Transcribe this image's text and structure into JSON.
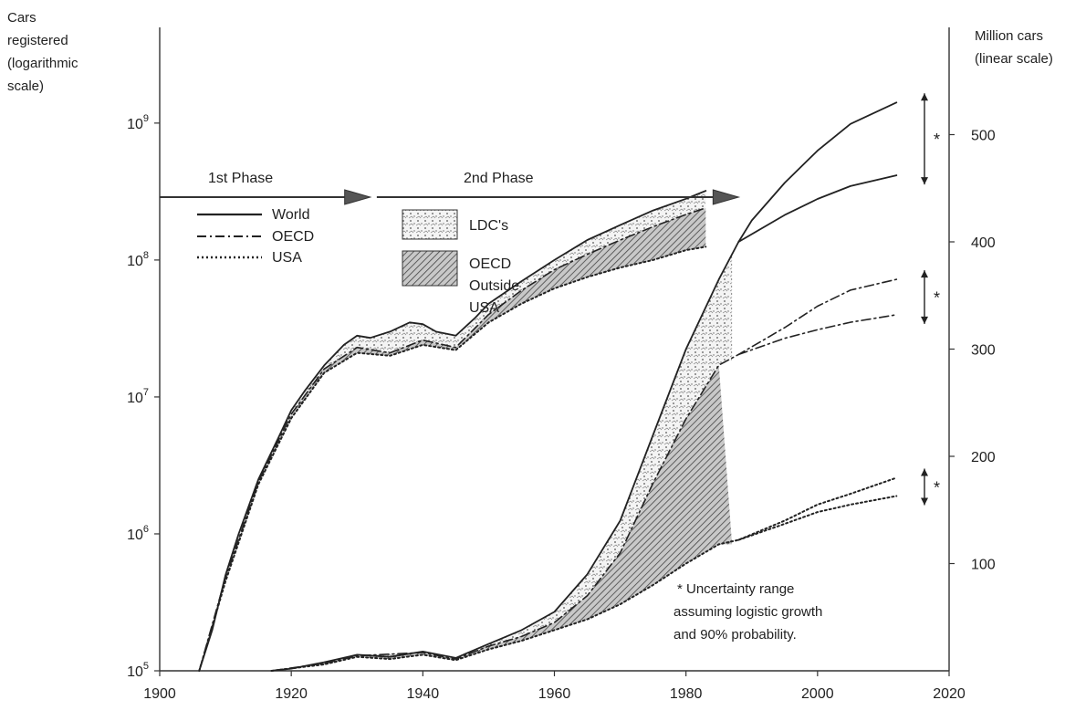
{
  "chart_data": {
    "type": "area",
    "left_axis_title": [
      "Cars",
      "registered",
      "(logarithmic",
      "scale)"
    ],
    "right_axis_title": [
      "Million cars",
      "(linear scale)"
    ],
    "x_ticks": [
      "1900",
      "1920",
      "1940",
      "1960",
      "1980",
      "2000",
      "2020"
    ],
    "x_range": [
      1900,
      2020
    ],
    "left_ticks": [
      {
        "base": "10",
        "exp": "5",
        "value": 100000
      },
      {
        "base": "10",
        "exp": "6",
        "value": 1000000
      },
      {
        "base": "10",
        "exp": "7",
        "value": 10000000
      },
      {
        "base": "10",
        "exp": "8",
        "value": 100000000
      },
      {
        "base": "10",
        "exp": "9",
        "value": 1000000000
      }
    ],
    "left_range": [
      100000,
      5000000000
    ],
    "log_scale_left": true,
    "right_ticks": [
      "100",
      "200",
      "300",
      "400",
      "500"
    ],
    "right_range": [
      0,
      600
    ],
    "phases": [
      {
        "label": "1st Phase",
        "from": 1900,
        "to": 1932
      },
      {
        "label": "2nd Phase",
        "from": 1933,
        "to": 1988
      }
    ],
    "legend_lines": [
      {
        "label": "World",
        "style": "solid"
      },
      {
        "label": "OECD",
        "style": "dashdot"
      },
      {
        "label": "USA",
        "style": "dotted"
      }
    ],
    "legend_fills": [
      {
        "label": "LDC's",
        "lines": [
          "LDC's"
        ]
      },
      {
        "label": "OECD Outside USA",
        "lines": [
          "OECD",
          "Outside",
          "USA"
        ]
      }
    ],
    "note": [
      "* Uncertainty range",
      "assuming logistic growth",
      "and 90% probability."
    ],
    "uncertainty_marker": "*",
    "series": [
      {
        "name": "World",
        "axis": "left-log",
        "points": [
          [
            1906,
            100000
          ],
          [
            1908,
            200000
          ],
          [
            1910,
            500000
          ],
          [
            1912,
            1000000
          ],
          [
            1915,
            2500000
          ],
          [
            1918,
            5000000
          ],
          [
            1920,
            8000000
          ],
          [
            1922,
            11000000
          ],
          [
            1925,
            17000000
          ],
          [
            1928,
            24000000
          ],
          [
            1930,
            28000000
          ],
          [
            1932,
            27000000
          ],
          [
            1935,
            30000000
          ],
          [
            1938,
            35000000
          ],
          [
            1940,
            34000000
          ],
          [
            1942,
            30000000
          ],
          [
            1945,
            28000000
          ],
          [
            1948,
            38000000
          ],
          [
            1950,
            48000000
          ],
          [
            1955,
            70000000
          ],
          [
            1960,
            100000000
          ],
          [
            1965,
            140000000
          ],
          [
            1970,
            180000000
          ],
          [
            1975,
            230000000
          ],
          [
            1980,
            280000000
          ],
          [
            1983,
            320000000
          ]
        ]
      },
      {
        "name": "OECD",
        "axis": "left-log",
        "points": [
          [
            1906,
            100000
          ],
          [
            1910,
            480000
          ],
          [
            1915,
            2400000
          ],
          [
            1920,
            7500000
          ],
          [
            1925,
            16000000
          ],
          [
            1930,
            23000000
          ],
          [
            1935,
            21000000
          ],
          [
            1940,
            26000000
          ],
          [
            1945,
            23000000
          ],
          [
            1950,
            40000000
          ],
          [
            1955,
            60000000
          ],
          [
            1960,
            85000000
          ],
          [
            1965,
            110000000
          ],
          [
            1970,
            140000000
          ],
          [
            1975,
            175000000
          ],
          [
            1980,
            215000000
          ],
          [
            1983,
            240000000
          ]
        ]
      },
      {
        "name": "USA",
        "axis": "left-log",
        "points": [
          [
            1906,
            100000
          ],
          [
            1910,
            450000
          ],
          [
            1915,
            2300000
          ],
          [
            1920,
            7000000
          ],
          [
            1925,
            15000000
          ],
          [
            1930,
            21000000
          ],
          [
            1935,
            20000000
          ],
          [
            1940,
            24000000
          ],
          [
            1945,
            22000000
          ],
          [
            1950,
            35000000
          ],
          [
            1955,
            48000000
          ],
          [
            1960,
            62000000
          ],
          [
            1965,
            75000000
          ],
          [
            1970,
            88000000
          ],
          [
            1975,
            100000000
          ],
          [
            1980,
            118000000
          ],
          [
            1983,
            125000000
          ]
        ]
      },
      {
        "name": "World",
        "axis": "right-linear",
        "points": [
          [
            1917,
            0
          ],
          [
            1920,
            2
          ],
          [
            1925,
            8
          ],
          [
            1930,
            15
          ],
          [
            1935,
            13
          ],
          [
            1940,
            18
          ],
          [
            1945,
            12
          ],
          [
            1950,
            25
          ],
          [
            1955,
            38
          ],
          [
            1960,
            55
          ],
          [
            1965,
            90
          ],
          [
            1970,
            140
          ],
          [
            1975,
            220
          ],
          [
            1980,
            300
          ],
          [
            1985,
            365
          ],
          [
            1988,
            400
          ],
          [
            1990,
            420
          ],
          [
            1995,
            455
          ],
          [
            2000,
            485
          ],
          [
            2005,
            510
          ],
          [
            2012,
            530
          ]
        ]
      },
      {
        "name": "World",
        "axis": "right-linear",
        "points": [
          [
            1988,
            400
          ],
          [
            1995,
            425
          ],
          [
            2000,
            440
          ],
          [
            2005,
            452
          ],
          [
            2012,
            462
          ]
        ]
      },
      {
        "name": "OECD",
        "axis": "right-linear",
        "points": [
          [
            1917,
            0
          ],
          [
            1925,
            7
          ],
          [
            1930,
            14
          ],
          [
            1940,
            17
          ],
          [
            1945,
            11
          ],
          [
            1950,
            23
          ],
          [
            1955,
            32
          ],
          [
            1960,
            45
          ],
          [
            1965,
            70
          ],
          [
            1970,
            110
          ],
          [
            1975,
            175
          ],
          [
            1980,
            235
          ],
          [
            1985,
            285
          ],
          [
            1988,
            295
          ],
          [
            1995,
            320
          ],
          [
            2000,
            340
          ],
          [
            2005,
            355
          ],
          [
            2012,
            365
          ]
        ]
      },
      {
        "name": "OECD",
        "axis": "right-linear",
        "points": [
          [
            1988,
            295
          ],
          [
            1995,
            310
          ],
          [
            2000,
            318
          ],
          [
            2005,
            325
          ],
          [
            2012,
            332
          ]
        ]
      },
      {
        "name": "USA",
        "axis": "right-linear",
        "points": [
          [
            1917,
            0
          ],
          [
            1925,
            6
          ],
          [
            1930,
            13
          ],
          [
            1935,
            11
          ],
          [
            1940,
            15
          ],
          [
            1945,
            10
          ],
          [
            1950,
            20
          ],
          [
            1955,
            28
          ],
          [
            1960,
            38
          ],
          [
            1965,
            48
          ],
          [
            1970,
            62
          ],
          [
            1975,
            80
          ],
          [
            1980,
            100
          ],
          [
            1985,
            118
          ],
          [
            1988,
            122
          ],
          [
            1995,
            140
          ],
          [
            2000,
            155
          ],
          [
            2005,
            165
          ],
          [
            2012,
            180
          ]
        ]
      },
      {
        "name": "USA",
        "axis": "right-linear",
        "points": [
          [
            1988,
            122
          ],
          [
            1995,
            137
          ],
          [
            2000,
            148
          ],
          [
            2005,
            155
          ],
          [
            2012,
            163
          ]
        ]
      }
    ]
  }
}
